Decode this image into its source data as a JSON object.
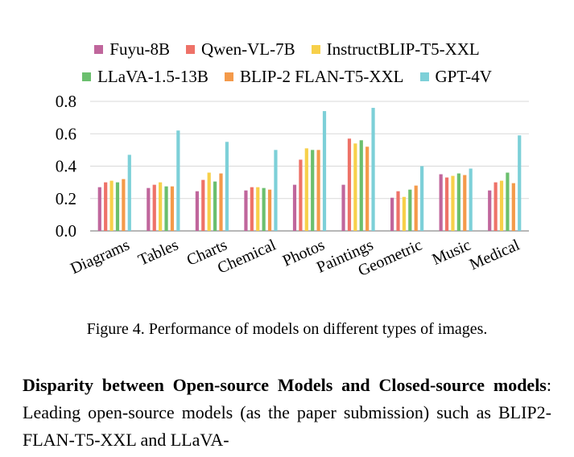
{
  "chart_data": {
    "type": "bar",
    "categories": [
      "Diagrams",
      "Tables",
      "Charts",
      "Chemical",
      "Photos",
      "Paintings",
      "Geometric",
      "Music",
      "Medical"
    ],
    "series": [
      {
        "name": "Fuyu-8B",
        "color": "#c0669c",
        "values": [
          0.27,
          0.265,
          0.245,
          0.25,
          0.285,
          0.285,
          0.205,
          0.35,
          0.25
        ]
      },
      {
        "name": "Qwen-VL-7B",
        "color": "#ee7268",
        "values": [
          0.3,
          0.285,
          0.315,
          0.27,
          0.44,
          0.57,
          0.245,
          0.33,
          0.3
        ]
      },
      {
        "name": "InstructBLIP-T5-XXL",
        "color": "#f7d04a",
        "values": [
          0.31,
          0.3,
          0.36,
          0.27,
          0.51,
          0.54,
          0.21,
          0.34,
          0.31
        ]
      },
      {
        "name": "LLaVA-1.5-13B",
        "color": "#6bbf6e",
        "values": [
          0.3,
          0.275,
          0.305,
          0.265,
          0.5,
          0.56,
          0.255,
          0.355,
          0.36
        ]
      },
      {
        "name": "BLIP-2 FLAN-T5-XXL",
        "color": "#f49a4a",
        "values": [
          0.32,
          0.275,
          0.355,
          0.255,
          0.5,
          0.52,
          0.28,
          0.345,
          0.295
        ]
      },
      {
        "name": "GPT-4V",
        "color": "#7dd0d8",
        "values": [
          0.47,
          0.62,
          0.55,
          0.5,
          0.74,
          0.76,
          0.4,
          0.385,
          0.59
        ]
      }
    ],
    "yticks": [
      "0.0",
      "0.2",
      "0.4",
      "0.6",
      "0.8"
    ],
    "ylim": [
      0,
      0.8
    ],
    "grid": true,
    "legend_position": "top"
  },
  "caption": "Figure 4. Performance of models on different types of images.",
  "body": {
    "lead": "Disparity between Open-source Models and Closed-source models",
    "text": ": Leading open-source models (as the paper submission) such as BLIP2-FLAN-T5-XXL and LLaVA-"
  }
}
